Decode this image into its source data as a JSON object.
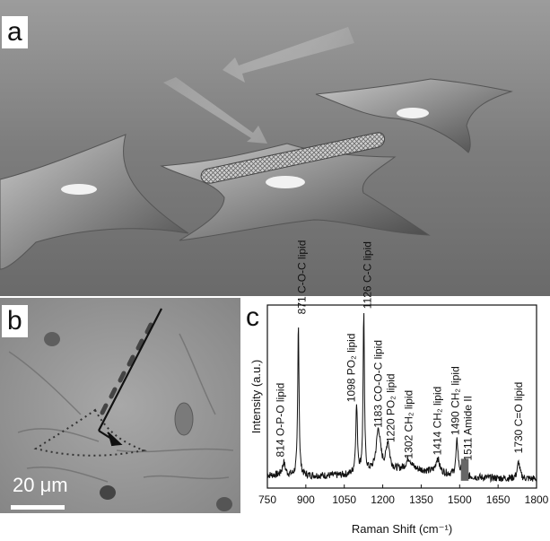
{
  "panels": {
    "a": {
      "label": "a"
    },
    "b": {
      "label": "b",
      "scale_bar": "20 μm"
    },
    "c": {
      "label": "c"
    }
  },
  "chart_data": {
    "type": "line",
    "xlabel": "Raman Shift (cm⁻¹)",
    "ylabel": "Intensity (a.u.)",
    "xlim": [
      750,
      1800
    ],
    "xticks": [
      750,
      900,
      1050,
      1200,
      1350,
      1500,
      1650,
      1800
    ],
    "ylim": [
      0,
      1
    ],
    "peaks": [
      {
        "x": 814,
        "y": 0.14,
        "label": "814 O-P-O lipid"
      },
      {
        "x": 871,
        "y": 0.92,
        "label": "871 C-O-C lipid"
      },
      {
        "x": 1098,
        "y": 0.44,
        "label": "1098 PO₂ lipid"
      },
      {
        "x": 1126,
        "y": 0.95,
        "label": "1126 C-C lipid"
      },
      {
        "x": 1183,
        "y": 0.3,
        "label": "1183 CO-O-C lipid"
      },
      {
        "x": 1220,
        "y": 0.22,
        "label": "1220 PO₂ lipid"
      },
      {
        "x": 1302,
        "y": 0.13,
        "label": "1302 CH₂ lipid"
      },
      {
        "x": 1414,
        "y": 0.15,
        "label": "1414 CH₂ lipid"
      },
      {
        "x": 1490,
        "y": 0.26,
        "label": "1490 CH₂ lipid"
      },
      {
        "x": 1511,
        "y": 0.12,
        "label": "1511 Amide II"
      },
      {
        "x": 1730,
        "y": 0.16,
        "label": "1730 C=O lipid"
      }
    ],
    "colors": {
      "line": "#111111",
      "amide_marker": "#666666"
    }
  }
}
